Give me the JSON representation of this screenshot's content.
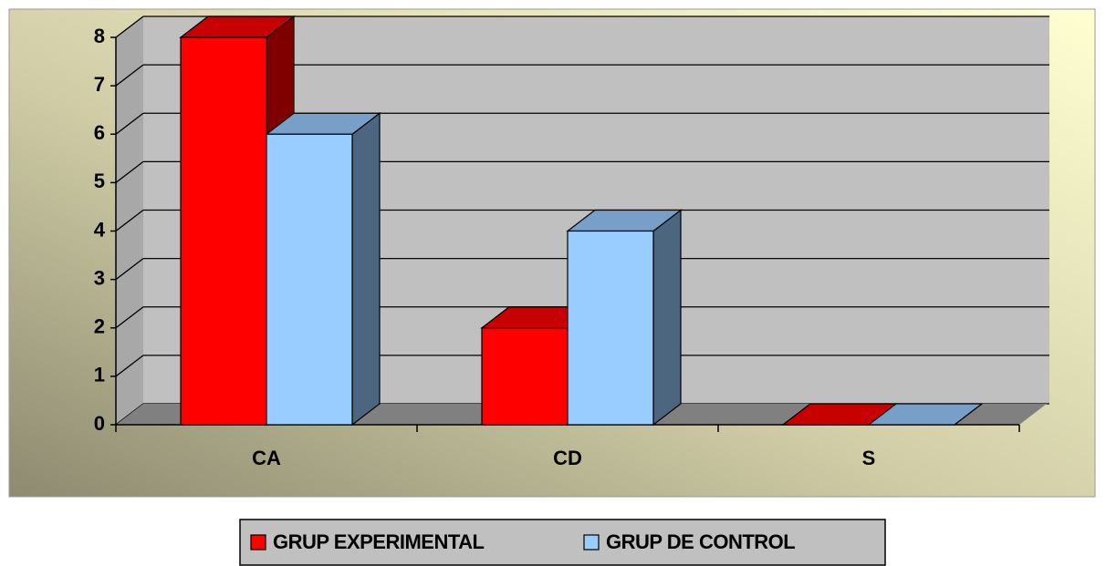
{
  "chart_data": {
    "type": "bar3d",
    "categories": [
      "CA",
      "CD",
      "S"
    ],
    "series": [
      {
        "name": "GRUP EXPERIMENTAL",
        "color": "#ff0000",
        "values": [
          8,
          2,
          0
        ]
      },
      {
        "name": "GRUP DE CONTROL",
        "color": "#99ccff",
        "values": [
          6,
          4,
          0
        ]
      }
    ],
    "ylim": [
      0,
      8
    ],
    "yticks": [
      0,
      1,
      2,
      3,
      4,
      5,
      6,
      7,
      8
    ],
    "grid": true,
    "legend": "bottom"
  }
}
